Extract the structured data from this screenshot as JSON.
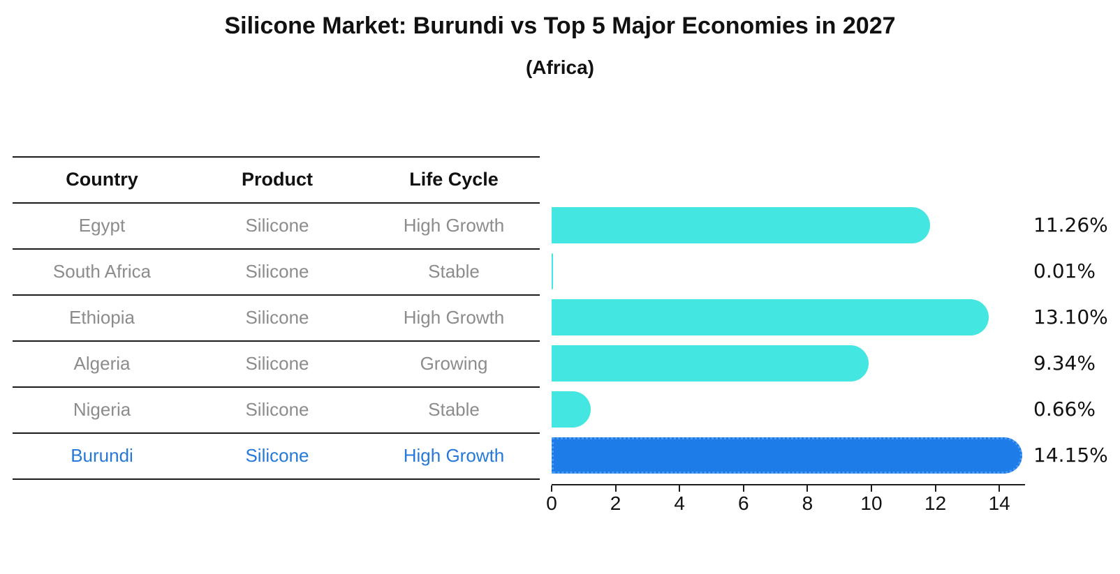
{
  "title": "Silicone Market: Burundi vs Top 5 Major Economies in 2027",
  "subtitle": "(Africa)",
  "table": {
    "headers": [
      "Country",
      "Product",
      "Life Cycle"
    ],
    "rows": [
      {
        "country": "Egypt",
        "product": "Silicone",
        "life_cycle": "High Growth",
        "highlight": false
      },
      {
        "country": "South Africa",
        "product": "Silicone",
        "life_cycle": "Stable",
        "highlight": false
      },
      {
        "country": "Ethiopia",
        "product": "Silicone",
        "life_cycle": "High Growth",
        "highlight": false
      },
      {
        "country": "Algeria",
        "product": "Silicone",
        "life_cycle": "Growing",
        "highlight": false
      },
      {
        "country": "Nigeria",
        "product": "Silicone",
        "life_cycle": "Stable",
        "highlight": false
      },
      {
        "country": "Burundi",
        "product": "Silicone",
        "life_cycle": "High Growth",
        "highlight": true
      }
    ]
  },
  "chart_data": {
    "type": "bar",
    "orientation": "horizontal",
    "title": "Silicone Market: Burundi vs Top 5 Major Economies in 2027",
    "subtitle": "(Africa)",
    "categories": [
      "Egypt",
      "South Africa",
      "Ethiopia",
      "Algeria",
      "Nigeria",
      "Burundi"
    ],
    "values": [
      11.26,
      0.01,
      13.1,
      9.34,
      0.66,
      14.15
    ],
    "value_labels": [
      "11.26%",
      "0.01%",
      "13.10%",
      "9.34%",
      "0.66%",
      "14.15%"
    ],
    "xlabel": "",
    "ylabel": "",
    "xlim": [
      0,
      14.83
    ],
    "xticks": [
      "0",
      "2",
      "4",
      "6",
      "8",
      "10",
      "12",
      "14"
    ],
    "grid": false,
    "legend": "none",
    "bar_color": "#43E6E0",
    "highlight_index": 5,
    "highlight_bar_color": "#1E7CE8",
    "highlight_edge_color": "#4D9BF0",
    "highlight_text_color": "#2679D8",
    "text_color": "#8C8C8C",
    "line_color": "#1B1B1B"
  }
}
